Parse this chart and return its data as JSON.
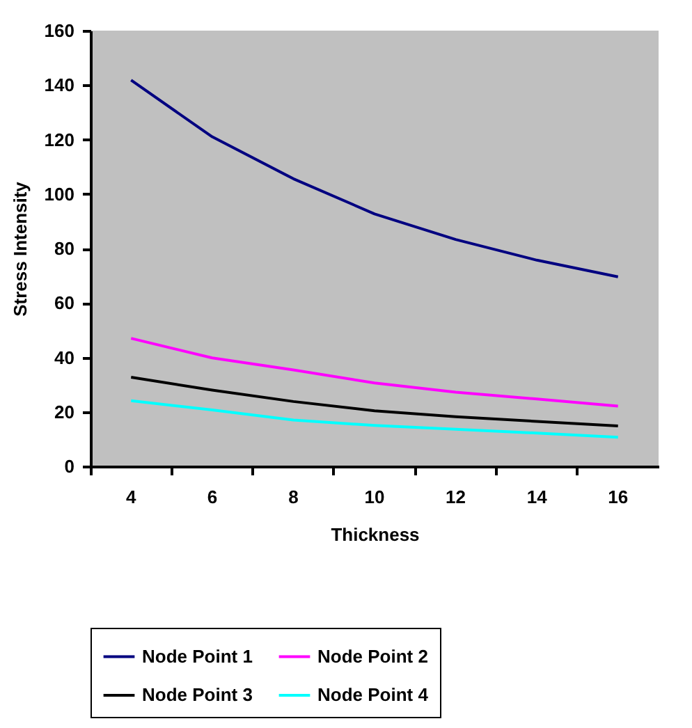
{
  "chart_data": {
    "type": "line",
    "xlabel": "Thickness",
    "ylabel": "Stress Intensity",
    "categories": [
      "4",
      "6",
      "8",
      "10",
      "12",
      "14",
      "16"
    ],
    "series": [
      {
        "name": "Node Point 1",
        "color": "#000080",
        "values": [
          141.8,
          121,
          105.6,
          92.7,
          83.3,
          75.7,
          69.6
        ]
      },
      {
        "name": "Node Point 2",
        "color": "#ff00ff",
        "values": [
          47,
          39.8,
          35.4,
          30.6,
          27.2,
          24.7,
          22.1
        ]
      },
      {
        "name": "Node Point 3",
        "color": "#000000",
        "values": [
          32.7,
          28,
          23.8,
          20.4,
          18.2,
          16.5,
          14.8
        ]
      },
      {
        "name": "Node Point 4",
        "color": "#00ffff",
        "values": [
          24.1,
          20.7,
          17,
          15,
          13.6,
          12.2,
          10.7
        ]
      }
    ],
    "ylim": [
      0,
      160
    ],
    "yticks": [
      0,
      20,
      40,
      60,
      80,
      100,
      120,
      140,
      160
    ],
    "grid": false,
    "legend": "bottom",
    "marker": "none",
    "line_style": "solid"
  }
}
